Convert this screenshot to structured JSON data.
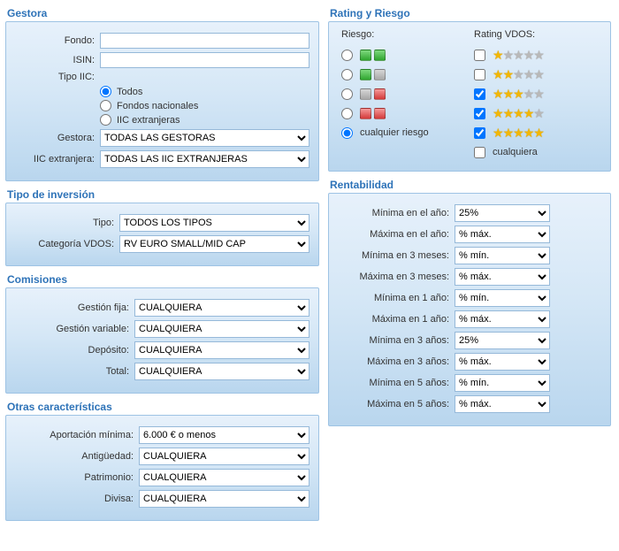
{
  "gestora_section": {
    "title": "Gestora",
    "fondo_label": "Fondo:",
    "fondo_value": "",
    "isin_label": "ISIN:",
    "isin_value": "",
    "tipo_iic_label": "Tipo IIC:",
    "tipo_iic_options": [
      {
        "label": "Todos",
        "checked": true
      },
      {
        "label": "Fondos nacionales",
        "checked": false
      },
      {
        "label": "IIC extranjeras",
        "checked": false
      }
    ],
    "gestora_label": "Gestora:",
    "gestora_value": "TODAS LAS GESTORAS",
    "iic_extranjera_label": "IIC extranjera:",
    "iic_extranjera_value": "TODAS LAS IIC EXTRANJERAS"
  },
  "tipo_inversion": {
    "title": "Tipo de inversión",
    "tipo_label": "Tipo:",
    "tipo_value": "TODOS LOS TIPOS",
    "cat_label": "Categoría VDOS:",
    "cat_value": "RV EURO SMALL/MID CAP"
  },
  "comisiones": {
    "title": "Comisiones",
    "rows": [
      {
        "label": "Gestión fija:",
        "value": "CUALQUIERA"
      },
      {
        "label": "Gestión variable:",
        "value": "CUALQUIERA"
      },
      {
        "label": "Depósito:",
        "value": "CUALQUIERA"
      },
      {
        "label": "Total:",
        "value": "CUALQUIERA"
      }
    ]
  },
  "otras": {
    "title": "Otras características",
    "rows": [
      {
        "label": "Aportación mínima:",
        "value": "6.000 € o menos"
      },
      {
        "label": "Antigüedad:",
        "value": "CUALQUIERA"
      },
      {
        "label": "Patrimonio:",
        "value": "CUALQUIERA"
      },
      {
        "label": "Divisa:",
        "value": "CUALQUIERA"
      }
    ]
  },
  "rating_riesgo": {
    "title": "Rating y Riesgo",
    "riesgo_label": "Riesgo:",
    "rating_label": "Rating VDOS:",
    "riesgo_options": [
      {
        "checked": false,
        "squares": [
          "green",
          "green"
        ]
      },
      {
        "checked": false,
        "squares": [
          "green",
          "grey"
        ]
      },
      {
        "checked": false,
        "squares": [
          "grey",
          "red"
        ]
      },
      {
        "checked": false,
        "squares": [
          "red",
          "red"
        ]
      },
      {
        "checked": true,
        "text": "cualquier riesgo"
      }
    ],
    "rating_options": [
      {
        "checked": false,
        "stars": 1
      },
      {
        "checked": false,
        "stars": 2
      },
      {
        "checked": true,
        "stars": 3
      },
      {
        "checked": true,
        "stars": 4
      },
      {
        "checked": true,
        "stars": 5
      },
      {
        "checked": false,
        "text": "cualquiera"
      }
    ]
  },
  "rentabilidad": {
    "title": "Rentabilidad",
    "rows": [
      {
        "label": "Mínima en el año:",
        "value": "25%"
      },
      {
        "label": "Máxima en el año:",
        "value": "% máx."
      },
      {
        "label": "Mínima en 3 meses:",
        "value": "% mín."
      },
      {
        "label": "Máxima en 3 meses:",
        "value": "% máx."
      },
      {
        "label": "Mínima en 1 año:",
        "value": "% mín."
      },
      {
        "label": "Máxima en 1 año:",
        "value": "% máx."
      },
      {
        "label": "Mínima en 3 años:",
        "value": "25%"
      },
      {
        "label": "Máxima en 3 años:",
        "value": "% máx."
      },
      {
        "label": "Mínima en 5 años:",
        "value": "% mín."
      },
      {
        "label": "Máxima en 5 años:",
        "value": "% máx."
      }
    ]
  },
  "colors": {
    "accent": "#2e73b8",
    "panel_top": "#e7f1fb",
    "panel_bottom": "#b9d6ee",
    "border": "#9ec3e4",
    "green": "#2fa62f",
    "red": "#d43a3a",
    "grey": "#a8a8a8",
    "star_on": "#f2b705",
    "star_off": "#b9b9b9"
  }
}
